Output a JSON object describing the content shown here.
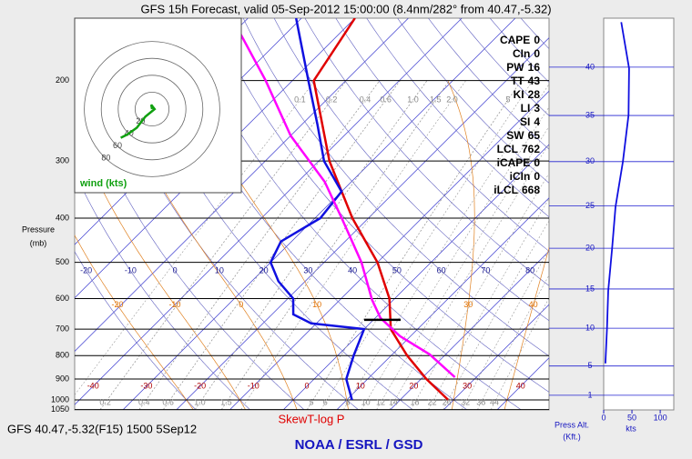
{
  "chart_data": {
    "type": "skewt",
    "title": "GFS 15h Forecast, valid 05-Sep-2012 15:00:00 (8.4nm/282° from 40.47,-5.32)",
    "footer": "GFS 40.47,-5.32(F15) 1500 5Sep12",
    "xlabel": "SkewT-log P",
    "credit": "NOAA / ESRL / GSD",
    "ylabel": [
      "Pressure",
      "(mb)"
    ],
    "log_y": true,
    "ylim": [
      1050,
      146
    ],
    "yticks": [
      200,
      300,
      400,
      500,
      600,
      700,
      800,
      900,
      1000,
      1050
    ],
    "isotherm_ticks": [
      -40,
      -30,
      -20,
      -10,
      0,
      10,
      20,
      30,
      40
    ],
    "dry_adiabat_ticks": [
      -20,
      -10,
      0,
      10,
      20,
      30,
      40,
      50,
      60,
      70,
      80
    ],
    "moist_adiabat_ticks": [
      -20,
      -10,
      0,
      10,
      30,
      40
    ],
    "mixing_ratio_top": [
      0.1,
      0.2,
      0.4,
      0.6,
      {
        "value": 1,
        "label": "1.0"
      },
      1.5,
      {
        "value": 2,
        "label": "2.0"
      },
      5
    ],
    "mixing_ratio_bottom": [
      0.2,
      0.4,
      0.6,
      {
        "value": 1,
        "label": "1.0"
      },
      1.5,
      5,
      6,
      8,
      10,
      12,
      14,
      18,
      22,
      26,
      32,
      38,
      44
    ],
    "series": [
      {
        "color": "#e00000",
        "pressure": [
          1000,
          900,
          800,
          700,
          600,
          500,
          400,
          300,
          200,
          146
        ],
        "values": [
          29,
          21,
          13,
          5,
          -1,
          -10,
          -23,
          -38,
          -56,
          -60
        ]
      },
      {
        "color": "#1010e0",
        "pressure": [
          1000,
          900,
          800,
          700,
          680,
          650,
          600,
          550,
          500,
          450,
          400,
          350,
          300,
          250,
          200,
          146
        ],
        "values": [
          11,
          6,
          3,
          0,
          -11,
          -16,
          -19,
          -25,
          -30,
          -32,
          -29,
          -30,
          -39,
          -47,
          -57,
          -71
        ]
      },
      {
        "color": "#ff00ff",
        "pressure": [
          892,
          795,
          725,
          662,
          604,
          500,
          400,
          333,
          264,
          200,
          146
        ],
        "values": [
          26,
          17,
          8,
          1,
          -4,
          -13,
          -25,
          -35,
          -50,
          -65,
          -83
        ]
      }
    ],
    "indices": [
      {
        "label": "CAPE",
        "value": 0
      },
      {
        "label": "CIn",
        "value": 0
      },
      {
        "label": "PW",
        "value": 16
      },
      {
        "label": "TT",
        "value": 43
      },
      {
        "label": "KI",
        "value": 28
      },
      {
        "label": "LI",
        "value": 3
      },
      {
        "label": "SI",
        "value": 4
      },
      {
        "label": "SW",
        "value": 65
      },
      {
        "label": "LCL",
        "value": 762
      },
      {
        "label": "iCAPE",
        "value": 0
      },
      {
        "label": "iCIn",
        "value": 0
      },
      {
        "label": "iLCL",
        "value": 668
      }
    ],
    "hodograph": {
      "label": "wind (kts)",
      "rings": [
        20,
        40,
        60,
        80
      ],
      "u": [
        0,
        -1,
        3,
        -8,
        -18,
        -29,
        -37
      ],
      "v": [
        0,
        5,
        0,
        -9,
        -22,
        -30,
        -34
      ]
    },
    "wind_profile": {
      "xlabel": "kts",
      "ylabel": [
        "Press Alt.",
        "(Kft.)"
      ],
      "xlim": [
        0,
        124
      ],
      "xticks": [
        0,
        50,
        100
      ],
      "yticks": [
        1,
        5,
        10,
        15,
        20,
        25,
        30,
        35,
        40
      ],
      "pressure": [
        832,
        693,
        577,
        465,
        378,
        301,
        238,
        188,
        149
      ],
      "values": [
        3,
        6,
        8,
        15,
        21,
        34,
        44,
        45,
        31
      ],
      "color": "#1010e0"
    }
  }
}
